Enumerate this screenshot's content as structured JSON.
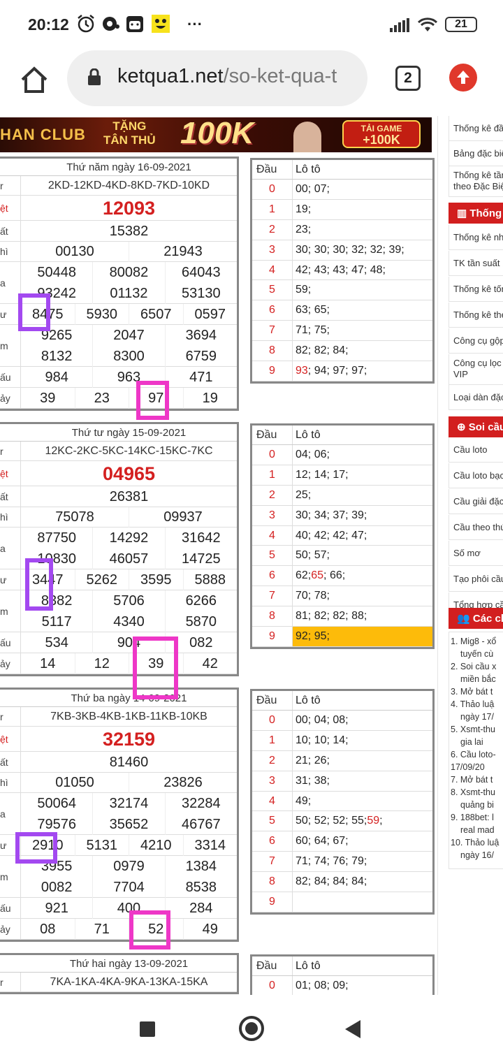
{
  "status": {
    "time": "20:12",
    "battery": "21",
    "icons": [
      "alarm-icon",
      "clock-icon",
      "app-face-icon",
      "app-smile-icon",
      "more-dots-icon"
    ]
  },
  "browser": {
    "url_host": "ketqua1.net",
    "url_path": "/so-ket-qua-t",
    "tab_count": "2"
  },
  "banner": {
    "brand": "HAN CLUB",
    "promo_line1": "TẶNG",
    "promo_line2": "TÂN THỦ",
    "amount": "100K",
    "cta_line1": "TẢI GAME",
    "cta_line2": "+100K"
  },
  "draws": [
    {
      "date": "Thứ năm ngày 16-09-2021",
      "code": "2KD-12KD-4KD-8KD-7KD-10KD",
      "special": "12093",
      "first": "15382",
      "second": [
        "00130",
        "21943"
      ],
      "third_a": [
        "50448",
        "80082",
        "64043"
      ],
      "third_b": [
        "93242",
        "01132",
        "53130"
      ],
      "fourth": [
        "8475",
        "5930",
        "6507",
        "0597"
      ],
      "fifth_a": [
        "9265",
        "2047",
        "3694"
      ],
      "fifth_b": [
        "8132",
        "8300",
        "6759"
      ],
      "sixth": [
        "984",
        "963",
        "471"
      ],
      "seventh": [
        "39",
        "23",
        "97",
        "19"
      ]
    },
    {
      "date": "Thứ tư ngày 15-09-2021",
      "code": "12KC-2KC-5KC-14KC-15KC-7KC",
      "special": "04965",
      "first": "26381",
      "second": [
        "75078",
        "09937"
      ],
      "third_a": [
        "87750",
        "14292",
        "31642"
      ],
      "third_b": [
        "10830",
        "46057",
        "14725"
      ],
      "fourth": [
        "3447",
        "5262",
        "3595",
        "5888"
      ],
      "fifth_a": [
        "8382",
        "5706",
        "6266"
      ],
      "fifth_b": [
        "5117",
        "4340",
        "5870"
      ],
      "sixth": [
        "534",
        "904",
        "082"
      ],
      "seventh": [
        "14",
        "12",
        "39",
        "42"
      ]
    },
    {
      "date": "Thứ ba ngày 14-09-2021",
      "code": "7KB-3KB-4KB-1KB-11KB-10KB",
      "special": "32159",
      "first": "81460",
      "second": [
        "01050",
        "23826"
      ],
      "third_a": [
        "50064",
        "32174",
        "32284"
      ],
      "third_b": [
        "79576",
        "35652",
        "46767"
      ],
      "fourth": [
        "2910",
        "5131",
        "4210",
        "3314"
      ],
      "fifth_a": [
        "3955",
        "0979",
        "1384"
      ],
      "fifth_b": [
        "0082",
        "7704",
        "8538"
      ],
      "sixth": [
        "921",
        "400",
        "284"
      ],
      "seventh": [
        "08",
        "71",
        "52",
        "49"
      ]
    },
    {
      "date": "Thứ hai ngày 13-09-2021",
      "code": "7KA-1KA-4KA-9KA-13KA-15KA"
    }
  ],
  "row_labels": [
    "r",
    "ệt",
    "ất",
    "hì",
    "a",
    "ư",
    "m",
    "ấu",
    "ảy"
  ],
  "loto_header": {
    "dau": "Đầu",
    "loto": "Lô tô"
  },
  "loto": [
    {
      "rows": [
        [
          "0",
          "00; 07;"
        ],
        [
          "1",
          "19;"
        ],
        [
          "2",
          "23;"
        ],
        [
          "3",
          "30; 30; 30; 32; 32; 39;"
        ],
        [
          "4",
          "42; 43; 43; 47; 48;"
        ],
        [
          "5",
          "59;"
        ],
        [
          "6",
          "63; 65;"
        ],
        [
          "7",
          "71; 75;"
        ],
        [
          "8",
          "82; 82; 84;"
        ],
        [
          "9",
          "|93|; 94; 97; 97;"
        ]
      ]
    },
    {
      "rows": [
        [
          "0",
          "04; 06;"
        ],
        [
          "1",
          "12; 14; 17;"
        ],
        [
          "2",
          "25;"
        ],
        [
          "3",
          "30; 34; 37; 39;"
        ],
        [
          "4",
          "40; 42; 42; 47;"
        ],
        [
          "5",
          "50; 57;"
        ],
        [
          "6",
          "62; |65|; 66;"
        ],
        [
          "7",
          "70; 78;"
        ],
        [
          "8",
          "81; 82; 82; 88;"
        ],
        [
          "9",
          "92; 95;"
        ]
      ]
    },
    {
      "rows": [
        [
          "0",
          "00; 04; 08;"
        ],
        [
          "1",
          "10; 10; 14;"
        ],
        [
          "2",
          "21; 26;"
        ],
        [
          "3",
          "31; 38;"
        ],
        [
          "4",
          "49;"
        ],
        [
          "5",
          "50; 52; 52; 55; |59|;"
        ],
        [
          "6",
          "60; 64; 67;"
        ],
        [
          "7",
          "71; 74; 76; 79;"
        ],
        [
          "8",
          "82; 84; 84; 84;"
        ],
        [
          "9",
          ""
        ]
      ]
    },
    {
      "rows": [
        [
          "0",
          "01; 08; 09;"
        ]
      ]
    }
  ],
  "sidebar": {
    "top_items": [
      "Thống kê đầ",
      "Bảng đặc biệ",
      "Thống kê tần theo Đặc Biệ"
    ],
    "thongke_head": "Thống",
    "thongke_items": [
      "Thống kê nha",
      "TK tần suất b",
      "Thống kê tốn",
      "Thống kê the",
      "Công cụ gộp",
      "Công cụ lọc VIP",
      "Loại dàn đặc"
    ],
    "soicau_head": "Soi cầu",
    "soicau_items": [
      "Cầu loto",
      "Cầu loto bạc",
      "Cầu giải đặc",
      "Cầu theo thứ",
      "Số mơ",
      "Tạo phôi cầu",
      "Tổng hợp cầ"
    ],
    "cac_head": "Các ch",
    "cac_list": [
      "1. Mig8 - xổ",
      "tuyến cù",
      "2. Soi cầu x",
      "miền bắc",
      "3. Mở bát t",
      "4. Thảo luậ",
      "ngày 17/",
      "5. Xsmt-thu",
      "gia lai",
      "6. Cầu loto-",
      "17/09/20",
      "7. Mở bát t",
      "8. Xsmt-thu",
      "quảng bi",
      "9. 188bet: l",
      "real mad",
      "10. Thảo luậ",
      "ngày 16/"
    ]
  }
}
